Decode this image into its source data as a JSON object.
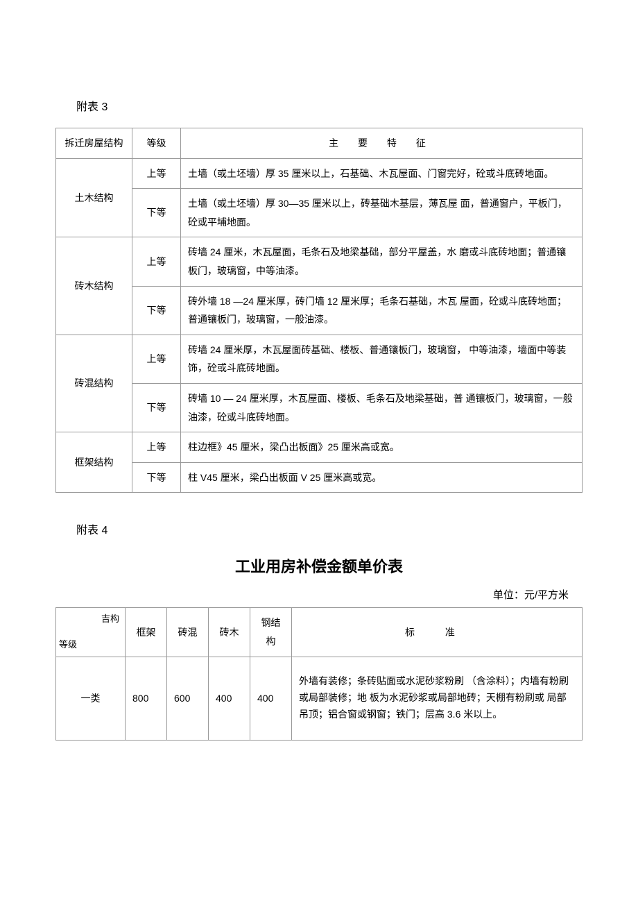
{
  "section3": {
    "label": "附表 3",
    "table": {
      "headers": {
        "structure": "拆迁房屋结构",
        "level": "等级",
        "feature": "主 要 特 征"
      },
      "rows": [
        {
          "structure": "土木结构",
          "levels": [
            {
              "level": "上等",
              "feature": "土墙（或土坯墙）厚 35 厘米以上，石基础、木瓦屋面、门窗完好，砼或斗底砖地面。"
            },
            {
              "level": "下等",
              "feature": "土墙（或土坯墙）厚 30—35 厘米以上，砖基础木基层，薄瓦屋 面，普通窗户，平板门，砼或平埔地面。"
            }
          ]
        },
        {
          "structure": "砖木结构",
          "levels": [
            {
              "level": "上等",
              "feature": "砖墙 24 厘米，木瓦屋面，毛条石及地梁基础，部分平屋盖，水 磨或斗底砖地面；普通镶板门，玻璃窗，中等油漆。"
            },
            {
              "level": "下等",
              "feature": "砖外墙 18 —24 厘米厚，砖门墙 12 厘米厚；毛条石基础，木瓦 屋面，砼或斗底砖地面；普通镶板门，玻璃窗，一般油漆。"
            }
          ]
        },
        {
          "structure": "砖混结构",
          "levels": [
            {
              "level": "上等",
              "feature": "砖墙 24 厘米厚，木瓦屋面砖基础、楼板、普通镶板门，玻璃窗， 中等油漆，墙面中等装饰，砼或斗底砖地面。"
            },
            {
              "level": "下等",
              "feature": "砖墙 10 — 24 厘米厚，木瓦屋面、楼板、毛条石及地梁基础，普 通镶板门，玻璃窗，一般油漆，砼或斗底砖地面。"
            }
          ]
        },
        {
          "structure": "框架结构",
          "levels": [
            {
              "level": "上等",
              "feature": "柱边框》45 厘米，梁凸出板面》25 厘米高或宽。"
            },
            {
              "level": "下等",
              "feature": "柱 V45 厘米，梁凸出板面 V  25 厘米高或宽。"
            }
          ]
        }
      ]
    }
  },
  "section4": {
    "label": "附表 4",
    "title": "工业用房补偿金额单价表",
    "unit": "单位：元/平方米",
    "table": {
      "diag_top": "吉构",
      "diag_bottom": "等级",
      "headers": {
        "c1": "框架",
        "c2": "砖混",
        "c3": "砖木",
        "c4": "钢结构",
        "std": "标 准"
      },
      "rows": [
        {
          "level": "一类",
          "v1": "800",
          "v2": "600",
          "v3": "400",
          "v4": "400",
          "std": "外墙有装修；条砖贴面或水泥砂浆粉刷 （含涂料）；内墙有粉刷或局部装修；地 板为水泥砂浆或局部地砖；天棚有粉刷或 局部吊顶；铝合窗或钢窗；铁门；层高 3.6 米以上。"
        }
      ]
    }
  }
}
